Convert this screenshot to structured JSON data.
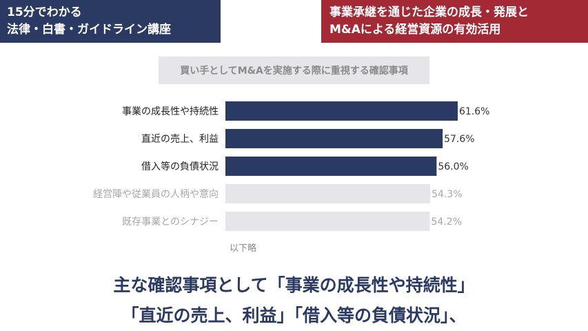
{
  "header": {
    "left_badge": {
      "line1": "15分でわかる",
      "line2": "法律・白書・ガイドライン講座"
    },
    "right_badge": {
      "line1": "事業承継を通じた企業の成長・発展と",
      "line2": "M&Aによる経営資源の有効活用"
    }
  },
  "colors": {
    "navy": "#2b3a63",
    "red": "#a32a35",
    "bar_highlight": "#2b3a63",
    "bar_muted": "#e6e6ea",
    "label_muted": "#a8a8a8"
  },
  "chart_data": {
    "type": "bar",
    "orientation": "horizontal",
    "title": "買い手としてM&Aを実施する際に重視する確認事項",
    "categories": [
      "事業の成長性や持続性",
      "直近の売上、利益",
      "借入等の負債状況",
      "経営陣や従業員の人柄や意向",
      "既存事業とのシナジー"
    ],
    "values": [
      61.6,
      57.6,
      56.0,
      54.3,
      54.2
    ],
    "value_labels": [
      "61.6%",
      "57.6%",
      "56.0%",
      "54.3%",
      "54.2%"
    ],
    "highlighted": [
      true,
      true,
      true,
      false,
      false
    ],
    "unit": "%",
    "grid": false,
    "note": "以下略"
  },
  "caption": {
    "line1": "主な確認事項として「事業の成長性や持続性」",
    "line2": "「直近の売上、利益」「借入等の負債状況」、"
  }
}
